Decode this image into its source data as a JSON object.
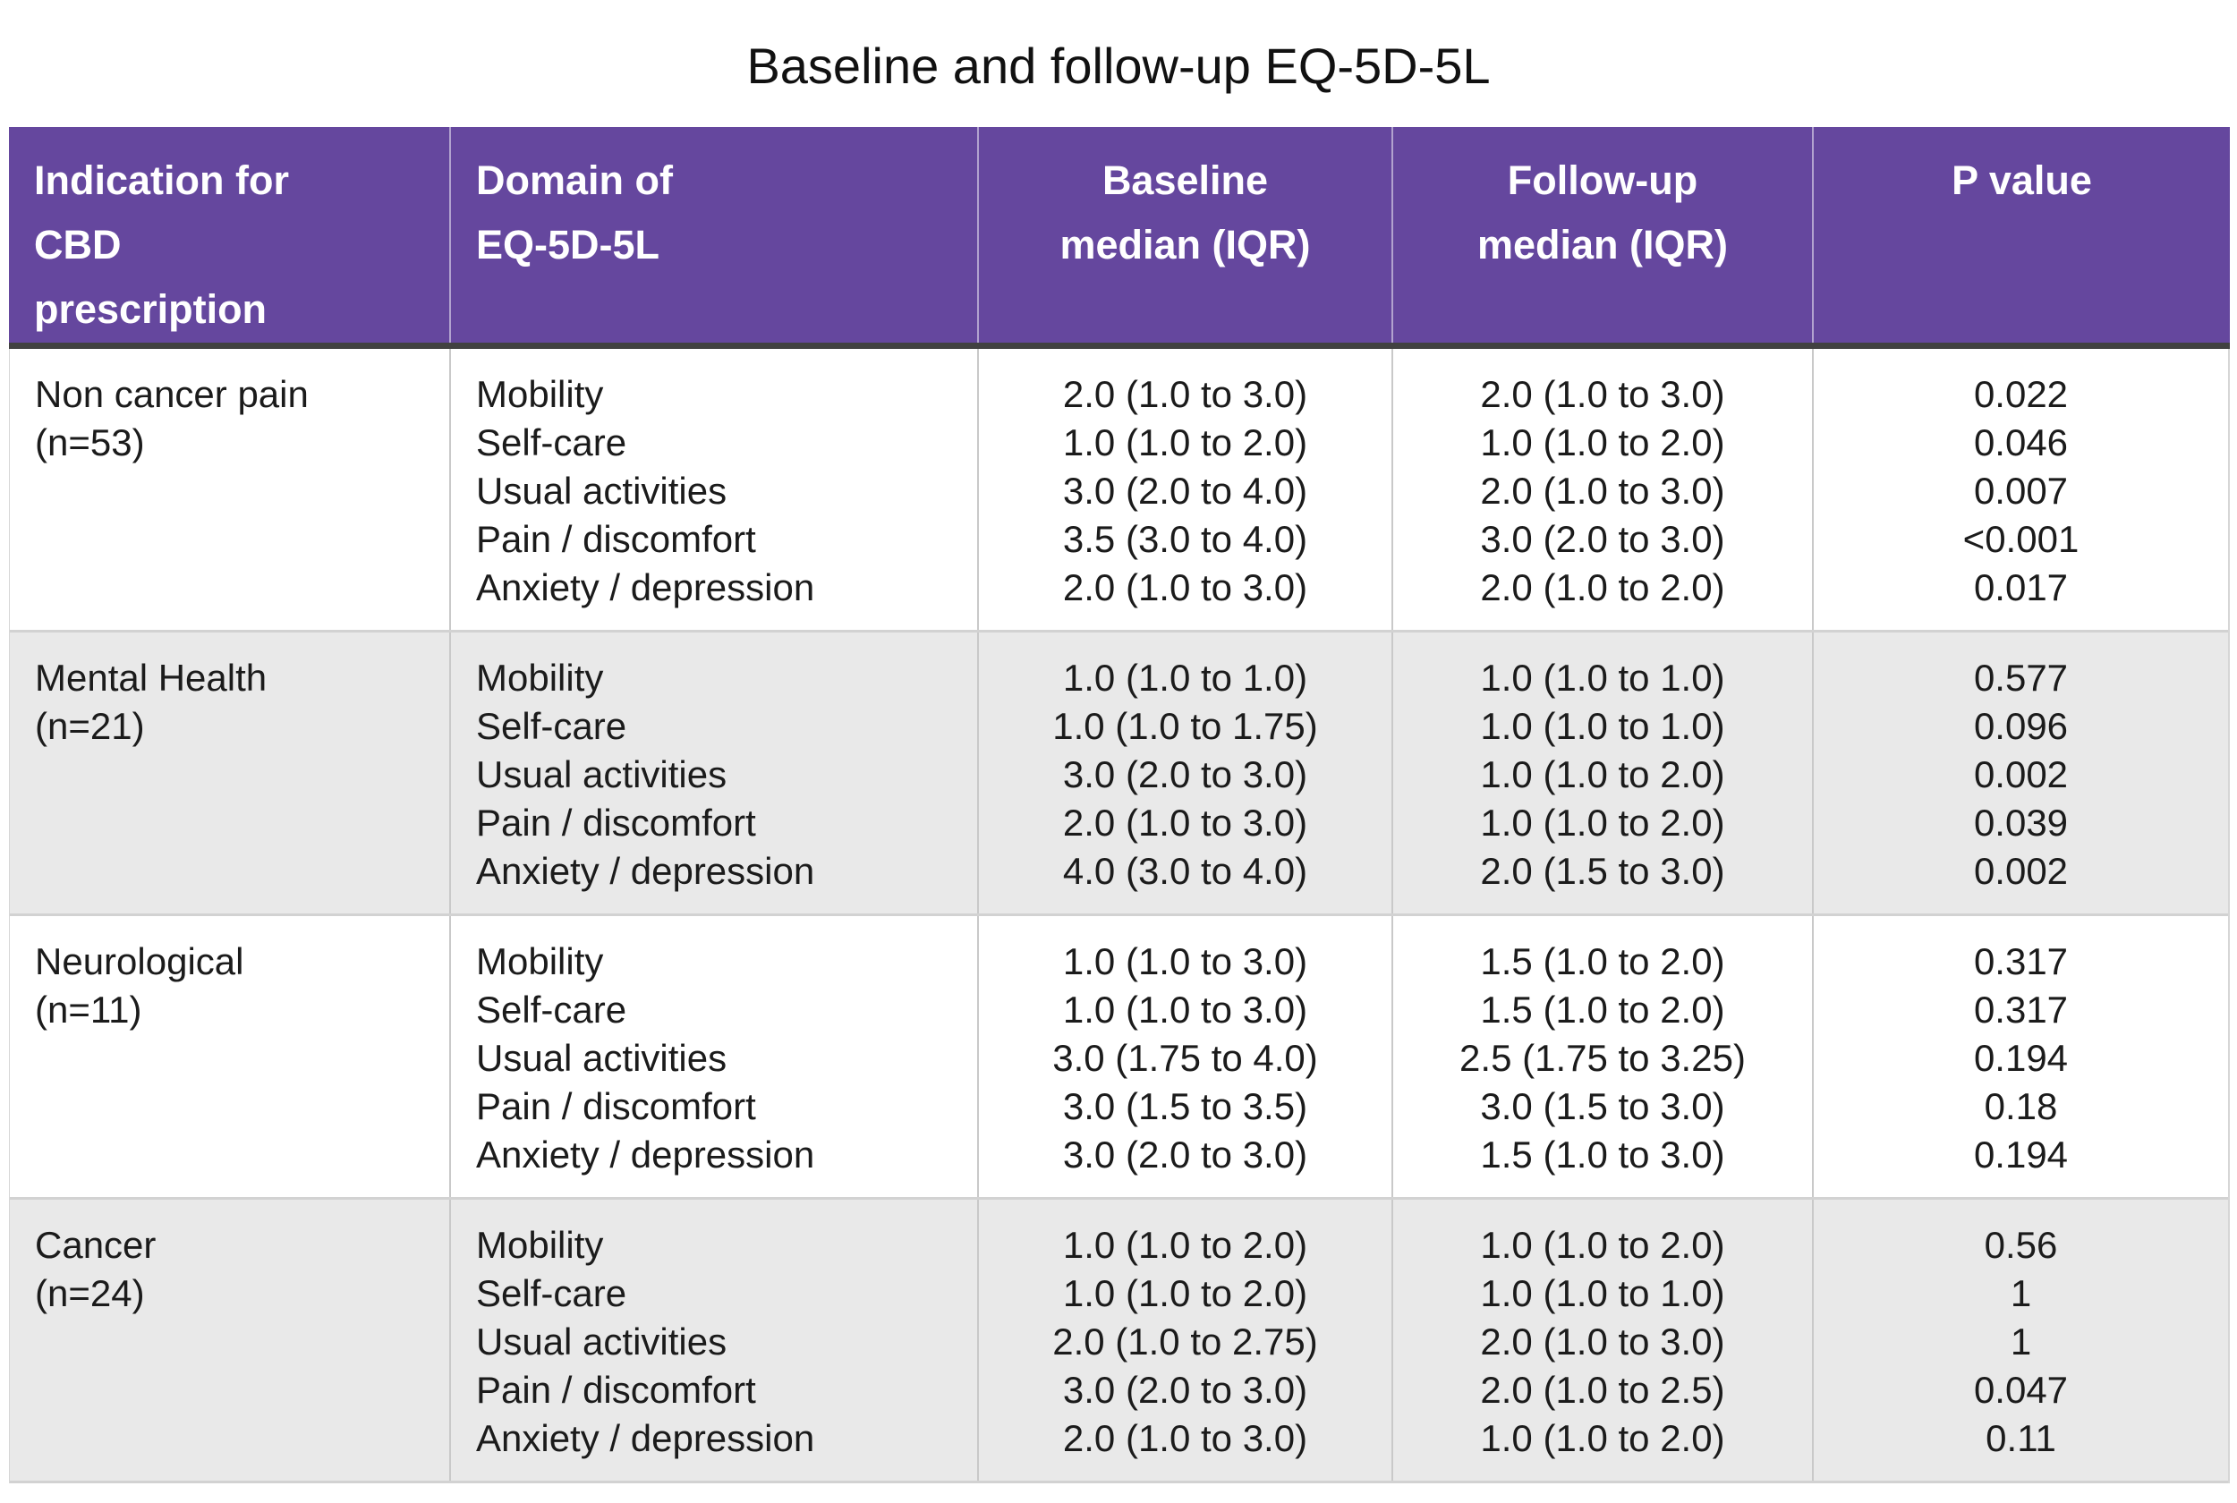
{
  "chart_data": {
    "type": "table",
    "title": "Baseline and follow-up EQ-5D-5L",
    "columns": [
      "Indication for CBD prescription",
      "Domain of EQ-5D-5L",
      "Baseline median (IQR)",
      "Follow-up median (IQR)",
      "P value"
    ],
    "header_lines": [
      "Indication for\nCBD\nprescription",
      "Domain of\nEQ-5D-5L",
      "Baseline\nmedian (IQR)",
      "Follow-up\nmedian (IQR)",
      "P value"
    ],
    "groups": [
      {
        "indication": "Non cancer pain",
        "n": "(n=53)",
        "rows": [
          {
            "domain": "Mobility",
            "baseline": "2.0 (1.0 to 3.0)",
            "followup": "2.0 (1.0 to 3.0)",
            "p": "0.022"
          },
          {
            "domain": "Self-care",
            "baseline": "1.0 (1.0 to 2.0)",
            "followup": "1.0 (1.0 to 2.0)",
            "p": "0.046"
          },
          {
            "domain": "Usual activities",
            "baseline": "3.0 (2.0 to 4.0)",
            "followup": "2.0 (1.0 to 3.0)",
            "p": "0.007"
          },
          {
            "domain": "Pain / discomfort",
            "baseline": "3.5 (3.0 to 4.0)",
            "followup": "3.0 (2.0 to 3.0)",
            "p": "<0.001"
          },
          {
            "domain": "Anxiety / depression",
            "baseline": "2.0 (1.0 to 3.0)",
            "followup": "2.0 (1.0 to 2.0)",
            "p": "0.017"
          }
        ]
      },
      {
        "indication": "Mental Health",
        "n": "(n=21)",
        "rows": [
          {
            "domain": "Mobility",
            "baseline": "1.0 (1.0 to 1.0)",
            "followup": "1.0 (1.0 to 1.0)",
            "p": "0.577"
          },
          {
            "domain": "Self-care",
            "baseline": "1.0 (1.0 to 1.75)",
            "followup": "1.0 (1.0 to 1.0)",
            "p": "0.096"
          },
          {
            "domain": "Usual activities",
            "baseline": "3.0 (2.0 to 3.0)",
            "followup": "1.0 (1.0 to 2.0)",
            "p": "0.002"
          },
          {
            "domain": "Pain / discomfort",
            "baseline": "2.0 (1.0 to 3.0)",
            "followup": "1.0 (1.0 to 2.0)",
            "p": "0.039"
          },
          {
            "domain": "Anxiety / depression",
            "baseline": "4.0 (3.0 to 4.0)",
            "followup": "2.0 (1.5 to 3.0)",
            "p": "0.002"
          }
        ]
      },
      {
        "indication": "Neurological",
        "n": "(n=11)",
        "rows": [
          {
            "domain": "Mobility",
            "baseline": "1.0 (1.0 to 3.0)",
            "followup": "1.5 (1.0 to 2.0)",
            "p": "0.317"
          },
          {
            "domain": "Self-care",
            "baseline": "1.0 (1.0 to 3.0)",
            "followup": "1.5 (1.0 to 2.0)",
            "p": "0.317"
          },
          {
            "domain": "Usual activities",
            "baseline": "3.0 (1.75 to 4.0)",
            "followup": "2.5 (1.75 to 3.25)",
            "p": "0.194"
          },
          {
            "domain": "Pain / discomfort",
            "baseline": "3.0 (1.5 to 3.5)",
            "followup": "3.0 (1.5 to 3.0)",
            "p": "0.18"
          },
          {
            "domain": "Anxiety / depression",
            "baseline": "3.0 (2.0 to 3.0)",
            "followup": "1.5 (1.0 to 3.0)",
            "p": "0.194"
          }
        ]
      },
      {
        "indication": "Cancer",
        "n": "(n=24)",
        "rows": [
          {
            "domain": "Mobility",
            "baseline": "1.0 (1.0 to 2.0)",
            "followup": "1.0 (1.0 to 2.0)",
            "p": "0.56"
          },
          {
            "domain": "Self-care",
            "baseline": "1.0 (1.0 to 2.0)",
            "followup": "1.0 (1.0 to 1.0)",
            "p": "1"
          },
          {
            "domain": "Usual activities",
            "baseline": "2.0 (1.0 to 2.75)",
            "followup": "2.0 (1.0 to 3.0)",
            "p": "1"
          },
          {
            "domain": "Pain / discomfort",
            "baseline": "3.0 (2.0 to 3.0)",
            "followup": "2.0 (1.0 to 2.5)",
            "p": "0.047"
          },
          {
            "domain": "Anxiety / depression",
            "baseline": "2.0 (1.0 to 3.0)",
            "followup": "1.0 (1.0 to 2.0)",
            "p": "0.11"
          }
        ]
      }
    ]
  },
  "colors": {
    "header_bg": "#65479e",
    "header_text": "#ffffff",
    "stripe_bg": "#e9e9e9",
    "header_underline": "#414141",
    "grid_line": "#c9c9c9"
  }
}
